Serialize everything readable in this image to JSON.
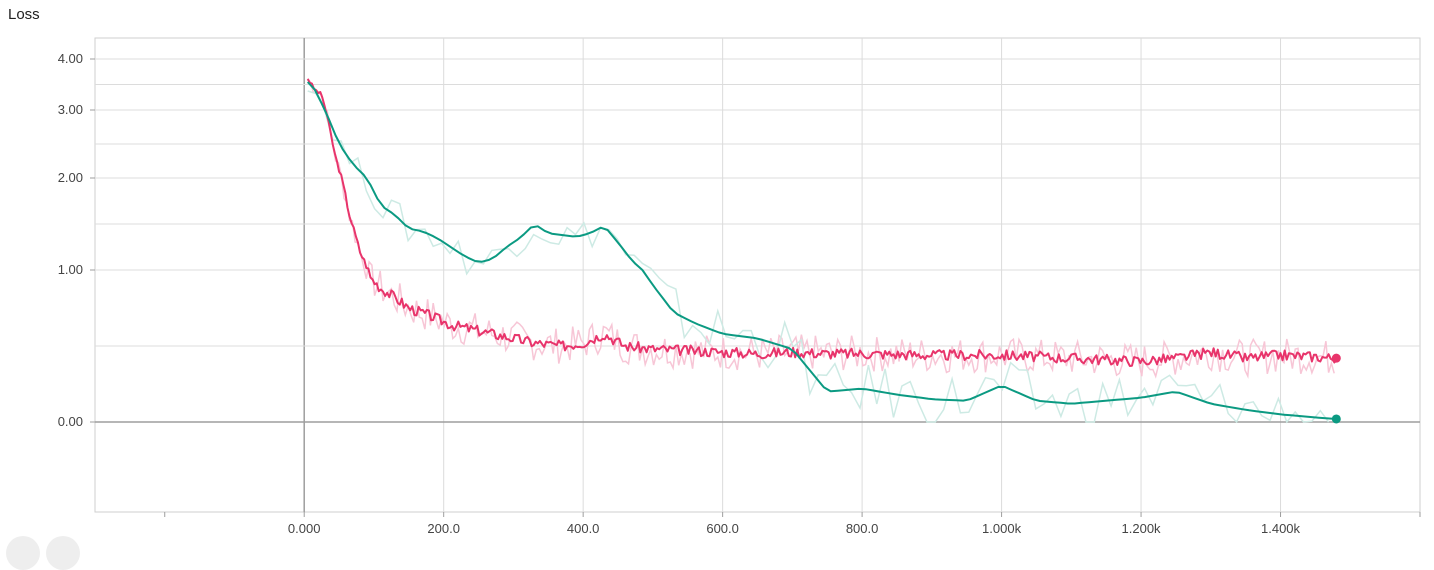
{
  "chart_title": "Loss",
  "chart_data": {
    "type": "line",
    "title": "Loss",
    "xlabel": "",
    "ylabel": "",
    "xlim": [
      -300,
      1600
    ],
    "ylim": [
      -1.2,
      4.6
    ],
    "x_ticks": [
      {
        "value": 0,
        "label": "0.000"
      },
      {
        "value": 200,
        "label": "200.0"
      },
      {
        "value": 400,
        "label": "400.0"
      },
      {
        "value": 600,
        "label": "600.0"
      },
      {
        "value": 800,
        "label": "800.0"
      },
      {
        "value": 1000,
        "label": "1.000k"
      },
      {
        "value": 1200,
        "label": "1.200k"
      },
      {
        "value": 1400,
        "label": "1.400k"
      }
    ],
    "y_ticks": [
      {
        "value": 0,
        "label": "0.00"
      },
      {
        "value": 1,
        "label": "1.00"
      },
      {
        "value": 2,
        "label": "2.00"
      },
      {
        "value": 3,
        "label": "3.00"
      },
      {
        "value": 4,
        "label": "4.00"
      }
    ],
    "grid": true,
    "series": [
      {
        "color": "#e8346b",
        "raw_color": "#f7c6d6",
        "x": [
          5,
          15,
          25,
          35,
          45,
          55,
          65,
          80,
          95,
          110,
          130,
          150,
          180,
          210,
          250,
          290,
          330,
          370,
          400,
          430,
          460,
          500,
          550,
          600,
          650,
          700,
          750,
          800,
          900,
          1000,
          1100,
          1200,
          1250,
          1300,
          1350,
          1400,
          1450,
          1480
        ],
        "values": [
          3.62,
          3.4,
          3.3,
          2.8,
          2.3,
          1.95,
          1.6,
          1.2,
          0.95,
          0.88,
          0.82,
          0.75,
          0.7,
          0.64,
          0.6,
          0.56,
          0.52,
          0.5,
          0.52,
          0.58,
          0.5,
          0.48,
          0.47,
          0.46,
          0.45,
          0.46,
          0.45,
          0.45,
          0.44,
          0.44,
          0.42,
          0.4,
          0.42,
          0.46,
          0.42,
          0.44,
          0.43,
          0.42
        ]
      },
      {
        "color": "#0b9a82",
        "raw_color": "#cdeae4",
        "x": [
          5,
          15,
          30,
          50,
          70,
          90,
          110,
          130,
          150,
          170,
          190,
          210,
          230,
          250,
          270,
          290,
          310,
          330,
          350,
          370,
          390,
          410,
          430,
          450,
          470,
          500,
          530,
          560,
          600,
          650,
          700,
          750,
          800,
          850,
          900,
          950,
          1000,
          1050,
          1100,
          1150,
          1200,
          1250,
          1300,
          1350,
          1400,
          1450,
          1480
        ],
        "values": [
          3.55,
          3.4,
          3.0,
          2.5,
          2.2,
          2.0,
          1.7,
          1.6,
          1.45,
          1.42,
          1.35,
          1.25,
          1.15,
          1.08,
          1.12,
          1.25,
          1.35,
          1.5,
          1.4,
          1.38,
          1.36,
          1.4,
          1.48,
          1.3,
          1.1,
          0.9,
          0.72,
          0.65,
          0.58,
          0.55,
          0.48,
          0.2,
          0.22,
          0.18,
          0.15,
          0.14,
          0.24,
          0.14,
          0.12,
          0.14,
          0.16,
          0.2,
          0.12,
          0.08,
          0.05,
          0.03,
          0.02
        ]
      }
    ]
  },
  "controls": {
    "left_button_icon": "circle-button",
    "right_button_icon": "circle-button"
  }
}
